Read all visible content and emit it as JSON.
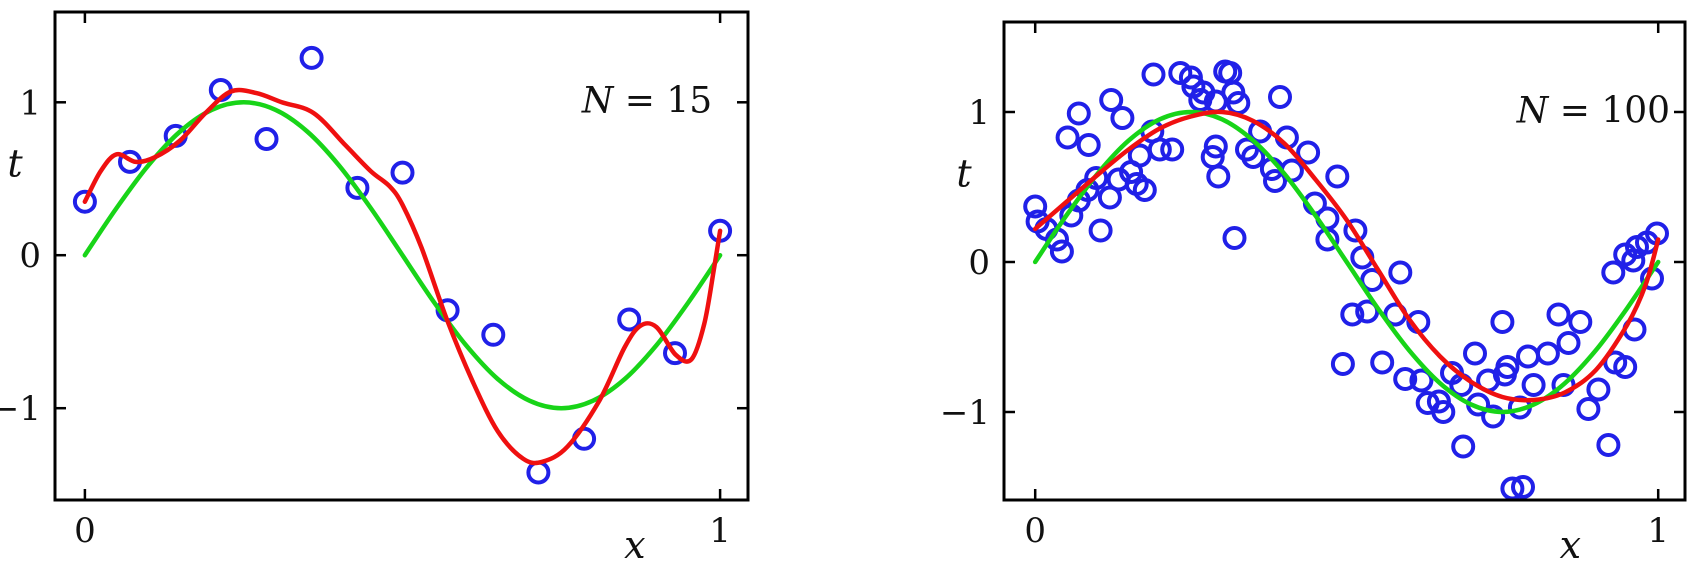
{
  "figure": {
    "description": "Two scatter plots of noisy samples from a sinusoid with a green true curve sin(2*pi*x) and a red polynomial fit",
    "left_annotation": "N = 15",
    "right_annotation": "N = 100"
  },
  "colors": {
    "data_points": "#2020e8",
    "true_curve": "#18d418",
    "fit_curve": "#ef1010",
    "axis": "#000000",
    "background": "#ffffff"
  },
  "chart_data": [
    {
      "type": "scatter",
      "annotation": {
        "text": "N = 15",
        "x": 0.885,
        "y": 1.01
      },
      "xlabel": "x",
      "ylabel": "t",
      "xlabel_x": 0.866,
      "ylabel_y": 0.6,
      "xlim": [
        -0.047,
        1.044
      ],
      "ylim": [
        -1.6,
        1.59
      ],
      "grid": false,
      "xticks": [
        {
          "v": 0,
          "label": "0"
        },
        {
          "v": 1,
          "label": "1"
        }
      ],
      "yticks": [
        {
          "v": 1,
          "label": "1"
        },
        {
          "v": 0,
          "label": "0"
        },
        {
          "v": -1,
          "label": "−1"
        }
      ],
      "points": [
        [
          0.0,
          0.35
        ],
        [
          0.071,
          0.61
        ],
        [
          0.143,
          0.78
        ],
        [
          0.214,
          1.08
        ],
        [
          0.286,
          0.76
        ],
        [
          0.357,
          1.29
        ],
        [
          0.429,
          0.44
        ],
        [
          0.5,
          0.54
        ],
        [
          0.571,
          -0.36
        ],
        [
          0.643,
          -0.52
        ],
        [
          0.714,
          -1.42
        ],
        [
          0.786,
          -1.2
        ],
        [
          0.857,
          -0.42
        ],
        [
          0.929,
          -0.64
        ],
        [
          1.0,
          0.16
        ]
      ],
      "series": [
        {
          "name": "true function sin(2πx)",
          "color_key": "true_curve",
          "points": [
            [
              0,
              0
            ],
            [
              0.05,
              0.309
            ],
            [
              0.1,
              0.588
            ],
            [
              0.15,
              0.809
            ],
            [
              0.2,
              0.951
            ],
            [
              0.25,
              1
            ],
            [
              0.3,
              0.951
            ],
            [
              0.35,
              0.809
            ],
            [
              0.4,
              0.588
            ],
            [
              0.45,
              0.309
            ],
            [
              0.5,
              0
            ],
            [
              0.55,
              -0.309
            ],
            [
              0.6,
              -0.588
            ],
            [
              0.65,
              -0.809
            ],
            [
              0.7,
              -0.951
            ],
            [
              0.75,
              -1
            ],
            [
              0.8,
              -0.951
            ],
            [
              0.85,
              -0.809
            ],
            [
              0.9,
              -0.588
            ],
            [
              0.95,
              -0.309
            ],
            [
              1,
              0
            ]
          ]
        },
        {
          "name": "polynomial fit",
          "color_key": "fit_curve",
          "points": [
            [
              0,
              0.35
            ],
            [
              0.025,
              0.55
            ],
            [
              0.05,
              0.66
            ],
            [
              0.08,
              0.61
            ],
            [
              0.11,
              0.64
            ],
            [
              0.15,
              0.75
            ],
            [
              0.19,
              0.93
            ],
            [
              0.23,
              1.07
            ],
            [
              0.27,
              1.06
            ],
            [
              0.31,
              1.0
            ],
            [
              0.36,
              0.93
            ],
            [
              0.41,
              0.72
            ],
            [
              0.45,
              0.55
            ],
            [
              0.48,
              0.45
            ],
            [
              0.5,
              0.33
            ],
            [
              0.53,
              0.05
            ],
            [
              0.57,
              -0.42
            ],
            [
              0.61,
              -0.82
            ],
            [
              0.65,
              -1.15
            ],
            [
              0.69,
              -1.33
            ],
            [
              0.72,
              -1.35
            ],
            [
              0.76,
              -1.25
            ],
            [
              0.81,
              -0.95
            ],
            [
              0.85,
              -0.6
            ],
            [
              0.875,
              -0.46
            ],
            [
              0.9,
              -0.47
            ],
            [
              0.93,
              -0.65
            ],
            [
              0.955,
              -0.68
            ],
            [
              0.975,
              -0.45
            ],
            [
              0.99,
              -0.1
            ],
            [
              1,
              0.16
            ]
          ]
        }
      ]
    },
    {
      "type": "scatter",
      "annotation": {
        "text": "N = 100",
        "x": 0.896,
        "y": 1.01
      },
      "xlabel": "x",
      "ylabel": "t",
      "xlabel_x": 0.859,
      "ylabel_y": 0.59,
      "xlim": [
        -0.05,
        1.043
      ],
      "ylim": [
        -1.587,
        1.6
      ],
      "grid": false,
      "xticks": [
        {
          "v": 0,
          "label": "0"
        },
        {
          "v": 1,
          "label": "1"
        }
      ],
      "yticks": [
        {
          "v": 1,
          "label": "1"
        },
        {
          "v": 0,
          "label": "0"
        },
        {
          "v": -1,
          "label": "−1"
        }
      ],
      "points": [
        [
          0.0,
          0.37
        ],
        [
          0.004,
          0.27
        ],
        [
          0.018,
          0.22
        ],
        [
          0.035,
          0.15
        ],
        [
          0.043,
          0.07
        ],
        [
          0.058,
          0.31
        ],
        [
          0.07,
          0.41
        ],
        [
          0.084,
          0.48
        ],
        [
          0.098,
          0.56
        ],
        [
          0.052,
          0.83
        ],
        [
          0.07,
          0.99
        ],
        [
          0.086,
          0.78
        ],
        [
          0.105,
          0.21
        ],
        [
          0.122,
          1.08
        ],
        [
          0.14,
          0.96
        ],
        [
          0.12,
          0.43
        ],
        [
          0.134,
          0.55
        ],
        [
          0.154,
          0.6
        ],
        [
          0.168,
          0.71
        ],
        [
          0.188,
          0.87
        ],
        [
          0.163,
          0.52
        ],
        [
          0.176,
          0.48
        ],
        [
          0.19,
          1.25
        ],
        [
          0.2,
          0.75
        ],
        [
          0.233,
          1.26
        ],
        [
          0.25,
          1.23
        ],
        [
          0.313,
          1.26
        ],
        [
          0.254,
          1.17
        ],
        [
          0.27,
          1.13
        ],
        [
          0.29,
          1.07
        ],
        [
          0.318,
          1.13
        ],
        [
          0.265,
          1.08
        ],
        [
          0.305,
          1.27
        ],
        [
          0.326,
          1.06
        ],
        [
          0.22,
          0.75
        ],
        [
          0.29,
          0.77
        ],
        [
          0.285,
          0.7
        ],
        [
          0.294,
          0.57
        ],
        [
          0.32,
          0.16
        ],
        [
          0.393,
          1.1
        ],
        [
          0.361,
          0.87
        ],
        [
          0.404,
          0.83
        ],
        [
          0.34,
          0.75
        ],
        [
          0.35,
          0.7
        ],
        [
          0.38,
          0.62
        ],
        [
          0.385,
          0.54
        ],
        [
          0.412,
          0.61
        ],
        [
          0.438,
          0.73
        ],
        [
          0.449,
          0.39
        ],
        [
          0.469,
          0.29
        ],
        [
          0.485,
          0.57
        ],
        [
          0.514,
          0.21
        ],
        [
          0.469,
          0.15
        ],
        [
          0.525,
          0.03
        ],
        [
          0.586,
          -0.07
        ],
        [
          0.541,
          -0.12
        ],
        [
          0.509,
          -0.35
        ],
        [
          0.533,
          -0.33
        ],
        [
          0.578,
          -0.35
        ],
        [
          0.615,
          -0.4
        ],
        [
          0.494,
          -0.68
        ],
        [
          0.557,
          -0.67
        ],
        [
          0.594,
          -0.78
        ],
        [
          0.62,
          -0.79
        ],
        [
          0.669,
          -0.74
        ],
        [
          0.684,
          -0.82
        ],
        [
          0.727,
          -0.79
        ],
        [
          0.754,
          -0.75
        ],
        [
          0.63,
          -0.94
        ],
        [
          0.648,
          -0.93
        ],
        [
          0.655,
          -1.0
        ],
        [
          0.711,
          -0.95
        ],
        [
          0.735,
          -1.03
        ],
        [
          0.778,
          -0.97
        ],
        [
          0.687,
          -1.23
        ],
        [
          0.706,
          -0.61
        ],
        [
          0.75,
          -0.4
        ],
        [
          0.758,
          -0.7
        ],
        [
          0.766,
          -1.51
        ],
        [
          0.783,
          -1.5
        ],
        [
          0.791,
          -0.63
        ],
        [
          0.8,
          -0.82
        ],
        [
          0.823,
          -0.61
        ],
        [
          0.84,
          -0.35
        ],
        [
          0.856,
          -0.54
        ],
        [
          0.875,
          -0.4
        ],
        [
          0.848,
          -0.82
        ],
        [
          0.888,
          -0.98
        ],
        [
          0.904,
          -0.85
        ],
        [
          0.92,
          -1.22
        ],
        [
          0.931,
          -0.67
        ],
        [
          0.947,
          -0.7
        ],
        [
          0.962,
          -0.45
        ],
        [
          0.928,
          -0.07
        ],
        [
          0.947,
          0.05
        ],
        [
          0.96,
          0.01
        ],
        [
          0.966,
          0.1
        ],
        [
          0.982,
          0.13
        ],
        [
          0.99,
          -0.11
        ],
        [
          0.998,
          0.19
        ]
      ],
      "series": [
        {
          "name": "true function sin(2πx)",
          "color_key": "true_curve",
          "points": [
            [
              0,
              0
            ],
            [
              0.05,
              0.309
            ],
            [
              0.1,
              0.588
            ],
            [
              0.15,
              0.809
            ],
            [
              0.2,
              0.951
            ],
            [
              0.25,
              1
            ],
            [
              0.3,
              0.951
            ],
            [
              0.35,
              0.809
            ],
            [
              0.4,
              0.588
            ],
            [
              0.45,
              0.309
            ],
            [
              0.5,
              0
            ],
            [
              0.55,
              -0.309
            ],
            [
              0.6,
              -0.588
            ],
            [
              0.65,
              -0.809
            ],
            [
              0.7,
              -0.951
            ],
            [
              0.75,
              -1
            ],
            [
              0.8,
              -0.951
            ],
            [
              0.85,
              -0.809
            ],
            [
              0.9,
              -0.588
            ],
            [
              0.95,
              -0.309
            ],
            [
              1,
              0
            ]
          ]
        },
        {
          "name": "polynomial fit",
          "color_key": "fit_curve",
          "points": [
            [
              0,
              0.22
            ],
            [
              0.05,
              0.4
            ],
            [
              0.1,
              0.58
            ],
            [
              0.15,
              0.75
            ],
            [
              0.2,
              0.89
            ],
            [
              0.25,
              0.97
            ],
            [
              0.3,
              1.0
            ],
            [
              0.35,
              0.94
            ],
            [
              0.4,
              0.79
            ],
            [
              0.45,
              0.55
            ],
            [
              0.5,
              0.28
            ],
            [
              0.55,
              -0.05
            ],
            [
              0.6,
              -0.38
            ],
            [
              0.65,
              -0.63
            ],
            [
              0.7,
              -0.8
            ],
            [
              0.75,
              -0.9
            ],
            [
              0.8,
              -0.92
            ],
            [
              0.85,
              -0.87
            ],
            [
              0.9,
              -0.72
            ],
            [
              0.95,
              -0.42
            ],
            [
              0.98,
              -0.15
            ],
            [
              1,
              0.15
            ]
          ]
        }
      ]
    }
  ]
}
